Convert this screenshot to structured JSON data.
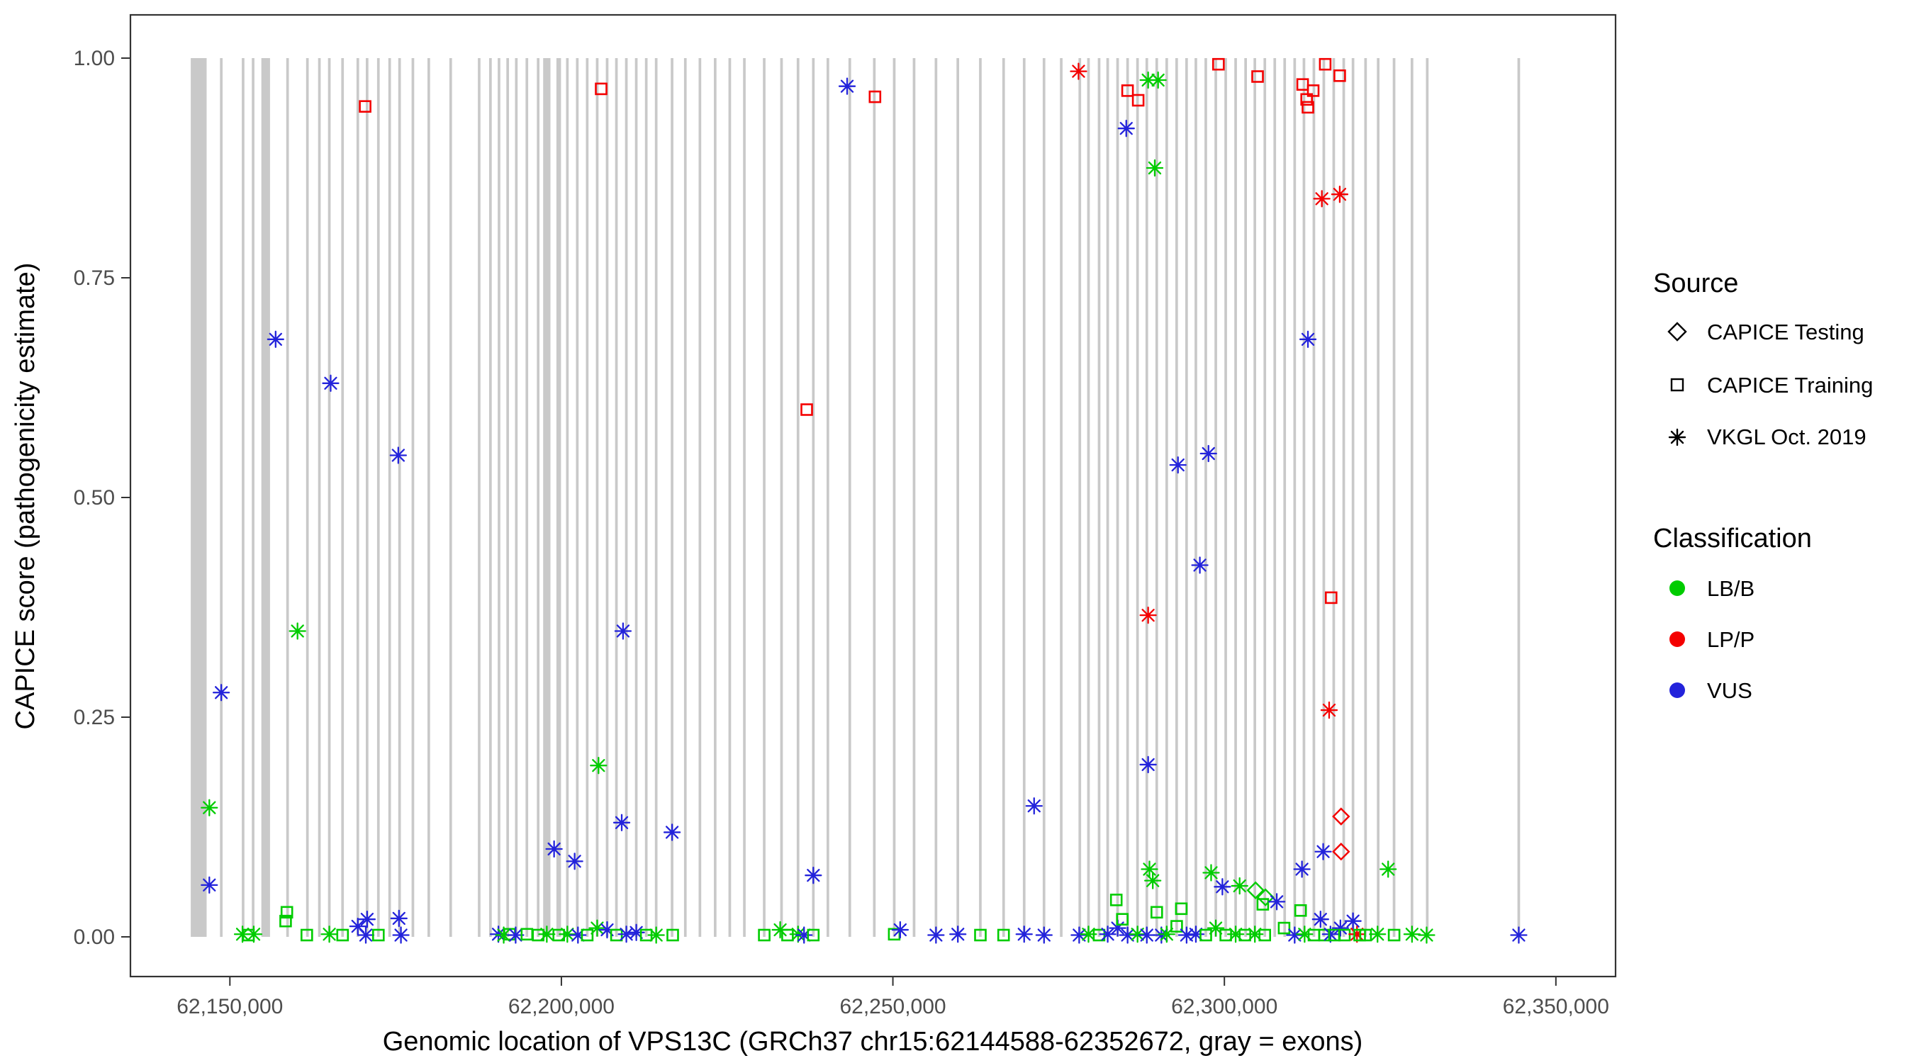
{
  "chart_data": {
    "type": "scatter",
    "title": "",
    "xlabel": "Genomic location of VPS13C (GRCh37 chr15:62144588-62352672, gray = exons)",
    "ylabel": "CAPICE score (pathogenicity estimate)",
    "x_range": [
      62135000,
      62359000
    ],
    "y_range": [
      -0.045,
      1.05
    ],
    "grid": "off",
    "x_ticks": [
      {
        "v": 62150000,
        "label": "62,150,000"
      },
      {
        "v": 62200000,
        "label": "62,200,000"
      },
      {
        "v": 62250000,
        "label": "62,250,000"
      },
      {
        "v": 62300000,
        "label": "62,300,000"
      },
      {
        "v": 62350000,
        "label": "62,350,000"
      }
    ],
    "y_ticks": [
      {
        "v": 0.0,
        "label": "0.00"
      },
      {
        "v": 0.25,
        "label": "0.25"
      },
      {
        "v": 0.5,
        "label": "0.50"
      },
      {
        "v": 0.75,
        "label": "0.75"
      },
      {
        "v": 1.0,
        "label": "1.00"
      }
    ],
    "legend": {
      "position": "right",
      "source": {
        "title": "Source",
        "items": [
          {
            "label": "CAPICE Testing",
            "shape": "diamond"
          },
          {
            "label": "CAPICE Training",
            "shape": "square"
          },
          {
            "label": "VKGL Oct. 2019",
            "shape": "asterisk"
          }
        ]
      },
      "classification": {
        "title": "Classification",
        "items": [
          {
            "label": "LB/B",
            "color": "#00CC00"
          },
          {
            "label": "LP/P",
            "color": "#F40000"
          },
          {
            "label": "VUS",
            "color": "#2323DB"
          }
        ]
      }
    },
    "source_codes": {
      "T": "CAPICE Testing",
      "R": "CAPICE Training",
      "V": "VKGL Oct. 2019"
    },
    "class_codes": {
      "B": "LB/B",
      "P": "LP/P",
      "U": "VUS"
    },
    "colors": {
      "LB/B": "#00CC00",
      "LP/P": "#F40000",
      "VUS": "#2323DB"
    },
    "exon_color": "#c9c9c9",
    "exons": [
      [
        62145300,
        2400
      ],
      [
        62148700,
        400
      ],
      [
        62152000,
        400
      ],
      [
        62153500,
        400
      ],
      [
        62155400,
        1300
      ],
      [
        62158700,
        400
      ],
      [
        62161700,
        400
      ],
      [
        62163500,
        400
      ],
      [
        62165000,
        400
      ],
      [
        62167000,
        400
      ],
      [
        62169300,
        400
      ],
      [
        62170700,
        400
      ],
      [
        62172400,
        400
      ],
      [
        62174100,
        400
      ],
      [
        62175600,
        400
      ],
      [
        62177600,
        400
      ],
      [
        62180000,
        400
      ],
      [
        62183300,
        400
      ],
      [
        62187600,
        400
      ],
      [
        62189300,
        400
      ],
      [
        62190600,
        400
      ],
      [
        62191900,
        400
      ],
      [
        62193200,
        400
      ],
      [
        62194800,
        400
      ],
      [
        62196500,
        400
      ],
      [
        62197800,
        1100
      ],
      [
        62199600,
        700
      ],
      [
        62200900,
        400
      ],
      [
        62202400,
        400
      ],
      [
        62203900,
        400
      ],
      [
        62205400,
        400
      ],
      [
        62206900,
        400
      ],
      [
        62208300,
        400
      ],
      [
        62209800,
        400
      ],
      [
        62211300,
        400
      ],
      [
        62212800,
        400
      ],
      [
        62214300,
        400
      ],
      [
        62216700,
        400
      ],
      [
        62218700,
        400
      ],
      [
        62220900,
        400
      ],
      [
        62223200,
        400
      ],
      [
        62225400,
        400
      ],
      [
        62227600,
        400
      ],
      [
        62230600,
        400
      ],
      [
        62233200,
        400
      ],
      [
        62235700,
        400
      ],
      [
        62238000,
        400
      ],
      [
        62240200,
        400
      ],
      [
        62243500,
        400
      ],
      [
        62247200,
        400
      ],
      [
        62250200,
        400
      ],
      [
        62253200,
        400
      ],
      [
        62256500,
        400
      ],
      [
        62259800,
        400
      ],
      [
        62263200,
        400
      ],
      [
        62266700,
        400
      ],
      [
        62269800,
        400
      ],
      [
        62272800,
        400
      ],
      [
        62275400,
        400
      ],
      [
        62278200,
        400
      ],
      [
        62279500,
        400
      ],
      [
        62281100,
        400
      ],
      [
        62282400,
        400
      ],
      [
        62283900,
        400
      ],
      [
        62285400,
        400
      ],
      [
        62286900,
        400
      ],
      [
        62288300,
        400
      ],
      [
        62289800,
        400
      ],
      [
        62291300,
        400
      ],
      [
        62292800,
        400
      ],
      [
        62294300,
        400
      ],
      [
        62295700,
        400
      ],
      [
        62297200,
        400
      ],
      [
        62298700,
        400
      ],
      [
        62300200,
        400
      ],
      [
        62301700,
        400
      ],
      [
        62303200,
        400
      ],
      [
        62304600,
        400
      ],
      [
        62306100,
        400
      ],
      [
        62307600,
        400
      ],
      [
        62309100,
        400
      ],
      [
        62310600,
        400
      ],
      [
        62312000,
        400
      ],
      [
        62313500,
        400
      ],
      [
        62315000,
        400
      ],
      [
        62316500,
        400
      ],
      [
        62318000,
        400
      ],
      [
        62319400,
        400
      ],
      [
        62321300,
        400
      ],
      [
        62323200,
        400
      ],
      [
        62325600,
        400
      ],
      [
        62328300,
        400
      ],
      [
        62330600,
        400
      ],
      [
        62344400,
        400
      ]
    ],
    "points": [
      [
        62170400,
        0.945,
        "R",
        "P"
      ],
      [
        62206000,
        0.965,
        "R",
        "P"
      ],
      [
        62247300,
        0.956,
        "R",
        "P"
      ],
      [
        62243100,
        0.968,
        "V",
        "U"
      ],
      [
        62278000,
        0.985,
        "V",
        "P"
      ],
      [
        62285400,
        0.963,
        "R",
        "P"
      ],
      [
        62287000,
        0.952,
        "R",
        "P"
      ],
      [
        62285200,
        0.92,
        "V",
        "U"
      ],
      [
        62288500,
        0.975,
        "V",
        "B"
      ],
      [
        62290000,
        0.975,
        "V",
        "B"
      ],
      [
        62289500,
        0.875,
        "V",
        "B"
      ],
      [
        62299100,
        0.993,
        "R",
        "P"
      ],
      [
        62305000,
        0.979,
        "R",
        "P"
      ],
      [
        62311800,
        0.97,
        "R",
        "P"
      ],
      [
        62312400,
        0.953,
        "R",
        "P"
      ],
      [
        62312600,
        0.944,
        "R",
        "P"
      ],
      [
        62313400,
        0.963,
        "R",
        "P"
      ],
      [
        62315200,
        0.993,
        "R",
        "P"
      ],
      [
        62317400,
        0.98,
        "R",
        "P"
      ],
      [
        62314700,
        0.84,
        "V",
        "P"
      ],
      [
        62317400,
        0.845,
        "V",
        "P"
      ],
      [
        62156900,
        0.68,
        "V",
        "U"
      ],
      [
        62312600,
        0.68,
        "V",
        "U"
      ],
      [
        62165200,
        0.63,
        "V",
        "U"
      ],
      [
        62237000,
        0.6,
        "R",
        "P"
      ],
      [
        62175400,
        0.548,
        "V",
        "U"
      ],
      [
        62297600,
        0.55,
        "V",
        "U"
      ],
      [
        62293000,
        0.537,
        "V",
        "U"
      ],
      [
        62296300,
        0.423,
        "V",
        "U"
      ],
      [
        62316100,
        0.386,
        "R",
        "P"
      ],
      [
        62288500,
        0.366,
        "V",
        "P"
      ],
      [
        62160200,
        0.348,
        "V",
        "B"
      ],
      [
        62209300,
        0.348,
        "V",
        "U"
      ],
      [
        62148700,
        0.278,
        "V",
        "U"
      ],
      [
        62315800,
        0.258,
        "V",
        "P"
      ],
      [
        62205600,
        0.195,
        "V",
        "B"
      ],
      [
        62288500,
        0.196,
        "V",
        "U"
      ],
      [
        62146900,
        0.147,
        "V",
        "B"
      ],
      [
        62271300,
        0.149,
        "V",
        "U"
      ],
      [
        62317600,
        0.137,
        "T",
        "P"
      ],
      [
        62209100,
        0.13,
        "V",
        "U"
      ],
      [
        62216700,
        0.119,
        "V",
        "U"
      ],
      [
        62317600,
        0.097,
        "T",
        "P"
      ],
      [
        62198900,
        0.1,
        "V",
        "U"
      ],
      [
        62202000,
        0.086,
        "V",
        "U"
      ],
      [
        62314900,
        0.097,
        "V",
        "U"
      ],
      [
        62311700,
        0.077,
        "V",
        "U"
      ],
      [
        62288700,
        0.077,
        "V",
        "B"
      ],
      [
        62289200,
        0.064,
        "V",
        "B"
      ],
      [
        62238000,
        0.07,
        "V",
        "U"
      ],
      [
        62324700,
        0.077,
        "V",
        "B"
      ],
      [
        62298000,
        0.073,
        "V",
        "B"
      ],
      [
        62299700,
        0.057,
        "V",
        "U"
      ],
      [
        62304700,
        0.053,
        "T",
        "B"
      ],
      [
        62306200,
        0.045,
        "T",
        "B"
      ],
      [
        62305800,
        0.037,
        "R",
        "B"
      ],
      [
        62146900,
        0.059,
        "V",
        "U"
      ],
      [
        62302300,
        0.058,
        "V",
        "B"
      ],
      [
        62307900,
        0.04,
        "V",
        "U"
      ],
      [
        62283700,
        0.042,
        "R",
        "B"
      ],
      [
        62293500,
        0.032,
        "R",
        "B"
      ],
      [
        62151900,
        0.003,
        "V",
        "B"
      ],
      [
        62152800,
        0.002,
        "R",
        "B"
      ],
      [
        62153600,
        0.003,
        "V",
        "B"
      ],
      [
        62158600,
        0.028,
        "R",
        "B"
      ],
      [
        62158400,
        0.018,
        "R",
        "B"
      ],
      [
        62161600,
        0.002,
        "R",
        "B"
      ],
      [
        62165000,
        0.003,
        "V",
        "B"
      ],
      [
        62167000,
        0.002,
        "R",
        "B"
      ],
      [
        62169300,
        0.012,
        "V",
        "U"
      ],
      [
        62170700,
        0.02,
        "V",
        "U"
      ],
      [
        62170500,
        0.002,
        "V",
        "U"
      ],
      [
        62172400,
        0.002,
        "R",
        "B"
      ],
      [
        62175500,
        0.021,
        "V",
        "U"
      ],
      [
        62175800,
        0.002,
        "V",
        "U"
      ],
      [
        62190500,
        0.003,
        "V",
        "U"
      ],
      [
        62191300,
        0.002,
        "V",
        "B"
      ],
      [
        62192200,
        0.003,
        "R",
        "B"
      ],
      [
        62193100,
        0.002,
        "V",
        "U"
      ],
      [
        62194800,
        0.003,
        "R",
        "B"
      ],
      [
        62196500,
        0.002,
        "R",
        "B"
      ],
      [
        62197800,
        0.003,
        "V",
        "B"
      ],
      [
        62199600,
        0.002,
        "R",
        "B"
      ],
      [
        62200900,
        0.003,
        "V",
        "B"
      ],
      [
        62202500,
        0.002,
        "V",
        "U"
      ],
      [
        62203900,
        0.002,
        "R",
        "B"
      ],
      [
        62205400,
        0.01,
        "V",
        "B"
      ],
      [
        62206900,
        0.008,
        "V",
        "U"
      ],
      [
        62208300,
        0.002,
        "R",
        "B"
      ],
      [
        62209800,
        0.003,
        "V",
        "U"
      ],
      [
        62211300,
        0.005,
        "V",
        "U"
      ],
      [
        62212800,
        0.002,
        "R",
        "B"
      ],
      [
        62214300,
        0.002,
        "V",
        "B"
      ],
      [
        62216800,
        0.002,
        "R",
        "B"
      ],
      [
        62230600,
        0.002,
        "R",
        "B"
      ],
      [
        62233000,
        0.008,
        "V",
        "B"
      ],
      [
        62234100,
        0.002,
        "R",
        "B"
      ],
      [
        62235700,
        0.003,
        "V",
        "B"
      ],
      [
        62236600,
        0.002,
        "V",
        "U"
      ],
      [
        62238000,
        0.002,
        "R",
        "B"
      ],
      [
        62250200,
        0.003,
        "R",
        "B"
      ],
      [
        62251100,
        0.008,
        "V",
        "U"
      ],
      [
        62256500,
        0.002,
        "V",
        "U"
      ],
      [
        62259800,
        0.003,
        "V",
        "U"
      ],
      [
        62263200,
        0.002,
        "R",
        "B"
      ],
      [
        62266700,
        0.002,
        "R",
        "B"
      ],
      [
        62269800,
        0.003,
        "V",
        "U"
      ],
      [
        62272800,
        0.002,
        "V",
        "U"
      ],
      [
        62278100,
        0.002,
        "V",
        "U"
      ],
      [
        62279500,
        0.003,
        "V",
        "B"
      ],
      [
        62281100,
        0.002,
        "R",
        "B"
      ],
      [
        62282400,
        0.003,
        "V",
        "U"
      ],
      [
        62283900,
        0.01,
        "V",
        "U"
      ],
      [
        62284600,
        0.02,
        "R",
        "B"
      ],
      [
        62285400,
        0.002,
        "V",
        "U"
      ],
      [
        62286900,
        0.003,
        "V",
        "B"
      ],
      [
        62288300,
        0.002,
        "V",
        "U"
      ],
      [
        62289800,
        0.028,
        "R",
        "B"
      ],
      [
        62290500,
        0.002,
        "V",
        "U"
      ],
      [
        62291300,
        0.003,
        "V",
        "B"
      ],
      [
        62292800,
        0.012,
        "R",
        "B"
      ],
      [
        62294300,
        0.002,
        "V",
        "U"
      ],
      [
        62295700,
        0.003,
        "V",
        "U"
      ],
      [
        62297200,
        0.002,
        "R",
        "B"
      ],
      [
        62298700,
        0.01,
        "V",
        "B"
      ],
      [
        62300200,
        0.002,
        "R",
        "B"
      ],
      [
        62301700,
        0.003,
        "V",
        "B"
      ],
      [
        62303100,
        0.002,
        "R",
        "B"
      ],
      [
        62304600,
        0.003,
        "V",
        "B"
      ],
      [
        62306100,
        0.002,
        "R",
        "B"
      ],
      [
        62309000,
        0.01,
        "R",
        "B"
      ],
      [
        62310600,
        0.002,
        "V",
        "U"
      ],
      [
        62311500,
        0.03,
        "R",
        "B"
      ],
      [
        62312100,
        0.003,
        "V",
        "B"
      ],
      [
        62313500,
        0.002,
        "R",
        "B"
      ],
      [
        62314500,
        0.02,
        "V",
        "U"
      ],
      [
        62315100,
        0.002,
        "R",
        "B"
      ],
      [
        62316000,
        0.003,
        "V",
        "U"
      ],
      [
        62316600,
        0.002,
        "R",
        "B"
      ],
      [
        62317500,
        0.01,
        "V",
        "U"
      ],
      [
        62318100,
        0.002,
        "R",
        "B"
      ],
      [
        62319400,
        0.018,
        "V",
        "U"
      ],
      [
        62320000,
        0.003,
        "V",
        "P"
      ],
      [
        62320400,
        0.002,
        "R",
        "B"
      ],
      [
        62321300,
        0.002,
        "R",
        "B"
      ],
      [
        62323100,
        0.003,
        "V",
        "B"
      ],
      [
        62325600,
        0.002,
        "R",
        "B"
      ],
      [
        62328300,
        0.003,
        "V",
        "B"
      ],
      [
        62330500,
        0.002,
        "V",
        "B"
      ],
      [
        62344400,
        0.002,
        "V",
        "U"
      ]
    ]
  }
}
